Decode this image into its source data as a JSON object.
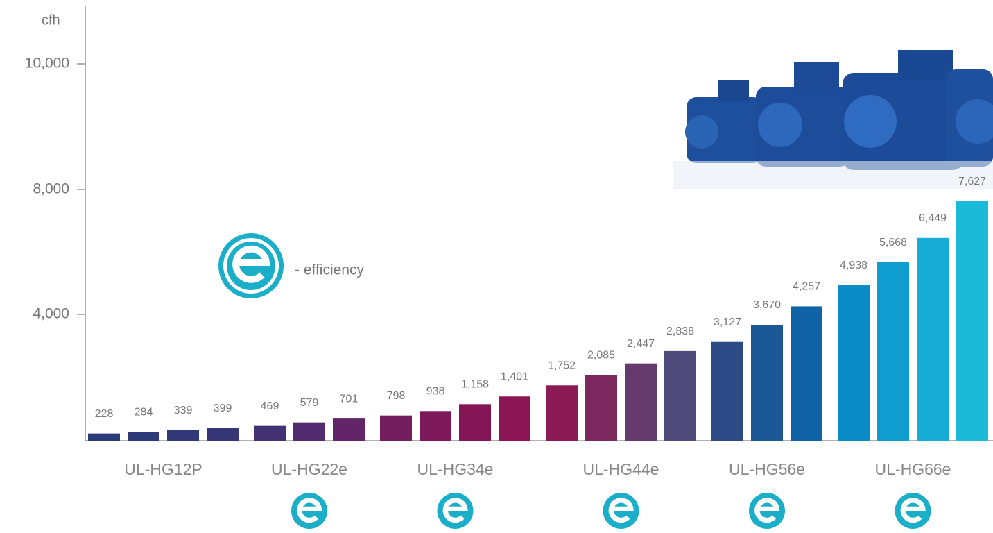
{
  "chart_data": {
    "type": "grouped-bar",
    "y_unit": "cfh",
    "ylim": [
      0,
      10000
    ],
    "yticks": [
      {
        "value": 4000,
        "label": "4,000"
      },
      {
        "value": 8000,
        "label": "8,000"
      },
      {
        "value": 10000,
        "label": "10,000"
      }
    ],
    "legend": {
      "label": "- efficiency",
      "color": "#1aaec8"
    },
    "groups": [
      {
        "name": "UL-HG12P",
        "efficiency": false,
        "values": [
          228,
          284,
          339,
          399
        ],
        "colors": [
          "#2b3a78",
          "#2e3a78",
          "#323877",
          "#363676"
        ]
      },
      {
        "name": "UL-HG22e",
        "efficiency": true,
        "values": [
          469,
          579,
          701
        ],
        "colors": [
          "#433273",
          "#522c6e",
          "#622668"
        ]
      },
      {
        "name": "UL-HG34e",
        "efficiency": true,
        "values": [
          798,
          938,
          1158,
          1401
        ],
        "colors": [
          "#741e60",
          "#7e1a5b",
          "#861757",
          "#8c1553"
        ],
        "value_labels": [
          "798",
          "938",
          "1,158",
          "1,401"
        ]
      },
      {
        "name": "UL-HG44e",
        "efficiency": true,
        "values": [
          1752,
          2085,
          2447,
          2838
        ],
        "colors": [
          "#8c1a55",
          "#7c285e",
          "#653a6c",
          "#4e4a7a"
        ],
        "value_labels": [
          "1,752",
          "2,085",
          "2,447",
          "2,838"
        ]
      },
      {
        "name": "UL-HG56e",
        "efficiency": true,
        "values": [
          3127,
          3670,
          4257
        ],
        "colors": [
          "#2c4a86",
          "#1a5794",
          "#0f63a6"
        ],
        "value_labels": [
          "3,127",
          "3,670",
          "4,257"
        ]
      },
      {
        "name": "UL-HG66e",
        "efficiency": true,
        "values": [
          4938,
          5668,
          6449,
          7627
        ],
        "colors": [
          "#0a8cc6",
          "#0f9ccf",
          "#16acd6",
          "#1cbad9"
        ],
        "value_labels": [
          "4,938",
          "5,668",
          "6,449",
          "7,627"
        ]
      }
    ]
  }
}
